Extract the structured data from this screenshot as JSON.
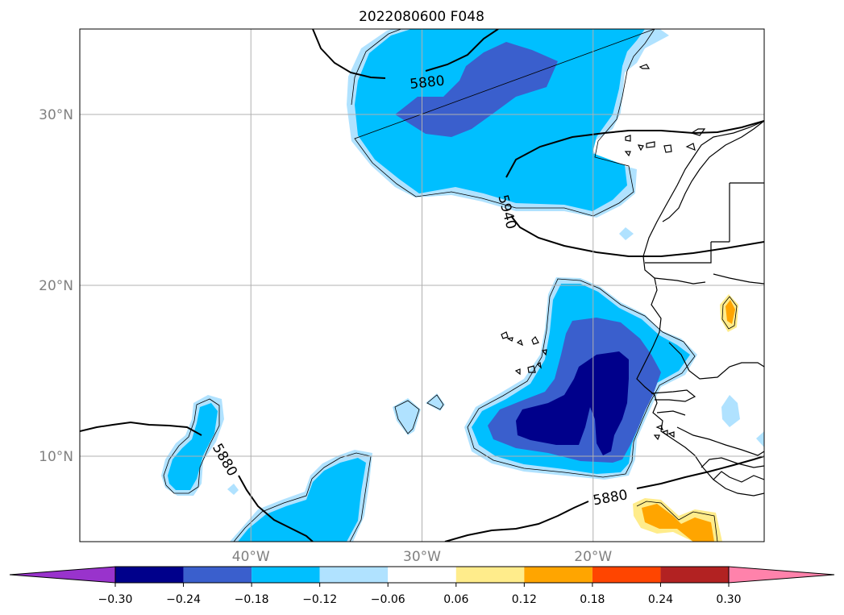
{
  "title": "2022080600 F048",
  "map_extent": {
    "lon_min": -50,
    "lon_max": -10,
    "lat_min": 5,
    "lat_max": 35
  },
  "gridlines": {
    "lon": [
      -40,
      -30,
      -20
    ],
    "lat": [
      10,
      20,
      30
    ],
    "lon_labels": [
      "40°W",
      "30°W",
      "20°W"
    ],
    "lat_labels": [
      "10°N",
      "20°N",
      "30°N"
    ]
  },
  "contour_labels": [
    {
      "text": "5880",
      "lon": -29.7,
      "lat": 31.9,
      "rotate": -6
    },
    {
      "text": "5940",
      "lon": -25.0,
      "lat": 24.3,
      "rotate": 75
    },
    {
      "text": "5880",
      "lon": -41.5,
      "lat": 9.8,
      "rotate": 60
    },
    {
      "text": "5880",
      "lon": -19.0,
      "lat": 7.6,
      "rotate": -10
    }
  ],
  "colorbar": {
    "labels": [
      "−0.30",
      "−0.24",
      "−0.18",
      "−0.12",
      "−0.06",
      "0.06",
      "0.12",
      "0.18",
      "0.24",
      "0.30"
    ],
    "colors": [
      "#9933cc",
      "#00008b",
      "#3a5fcd",
      "#00bfff",
      "#b0e2ff",
      "#ffffff",
      "#ffec8b",
      "#ffa500",
      "#ff4500",
      "#b22222",
      "#ff82ab"
    ]
  },
  "fill_colors": {
    "band1": "#b0e2ff",
    "band2": "#00bfff",
    "band3": "#3a5fcd",
    "band4": "#00008b",
    "pos1": "#ffec8b",
    "pos2": "#ffa500"
  }
}
